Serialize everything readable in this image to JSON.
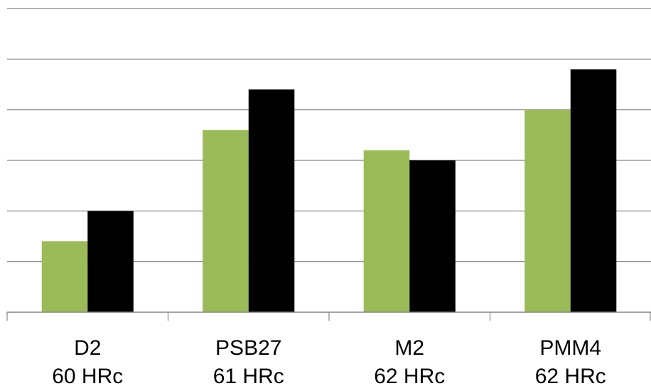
{
  "chart_data": {
    "type": "bar",
    "categories": [
      {
        "name": "D2",
        "hardness": "60 HRc"
      },
      {
        "name": "PSB27",
        "hardness": "61 HRc"
      },
      {
        "name": "M2",
        "hardness": "62 HRc"
      },
      {
        "name": "PMM4",
        "hardness": "62 HRc"
      }
    ],
    "series": [
      {
        "color": "#9bbb59",
        "values": [
          1.4,
          3.6,
          3.2,
          4.0
        ]
      },
      {
        "color": "#000000",
        "values": [
          2.0,
          4.4,
          3.0,
          4.8
        ]
      }
    ],
    "ylim": [
      0,
      6
    ],
    "y_gridlines": [
      1,
      2,
      3,
      4,
      5,
      6
    ],
    "grid": true,
    "legend": "none",
    "title": "",
    "xlabel": "",
    "ylabel": ""
  }
}
